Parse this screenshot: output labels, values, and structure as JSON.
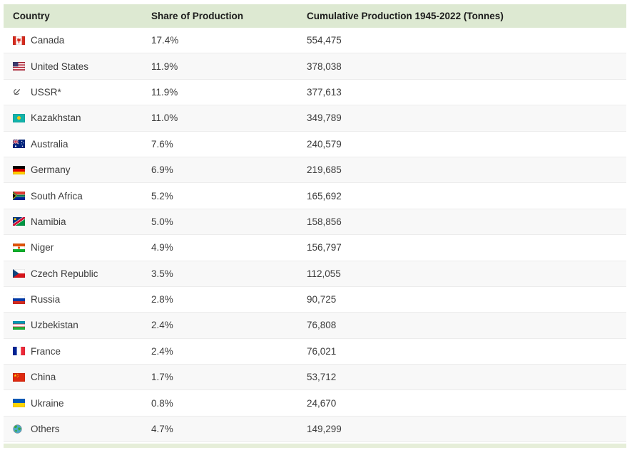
{
  "chart_data": {
    "type": "table",
    "columns": [
      "Country",
      "Share of Production",
      "Cumulative Production 1945-2022 (Tonnes)"
    ],
    "rows": [
      {
        "country": "Canada",
        "icon": "canada-flag-icon",
        "share": "17.4%",
        "share_pct": 17.4,
        "cumulative": "554,475",
        "cumulative_tonnes": 554475
      },
      {
        "country": "United States",
        "icon": "united-states-flag-icon",
        "share": "11.9%",
        "share_pct": 11.9,
        "cumulative": "378,038",
        "cumulative_tonnes": 378038
      },
      {
        "country": "USSR*",
        "icon": "ussr-hammer-sickle-icon",
        "share": "11.9%",
        "share_pct": 11.9,
        "cumulative": "377,613",
        "cumulative_tonnes": 377613
      },
      {
        "country": "Kazakhstan",
        "icon": "kazakhstan-flag-icon",
        "share": "11.0%",
        "share_pct": 11.0,
        "cumulative": "349,789",
        "cumulative_tonnes": 349789
      },
      {
        "country": "Australia",
        "icon": "australia-flag-icon",
        "share": "7.6%",
        "share_pct": 7.6,
        "cumulative": "240,579",
        "cumulative_tonnes": 240579
      },
      {
        "country": "Germany",
        "icon": "germany-flag-icon",
        "share": "6.9%",
        "share_pct": 6.9,
        "cumulative": "219,685",
        "cumulative_tonnes": 219685
      },
      {
        "country": "South Africa",
        "icon": "south-africa-flag-icon",
        "share": "5.2%",
        "share_pct": 5.2,
        "cumulative": "165,692",
        "cumulative_tonnes": 165692
      },
      {
        "country": "Namibia",
        "icon": "namibia-flag-icon",
        "share": "5.0%",
        "share_pct": 5.0,
        "cumulative": "158,856",
        "cumulative_tonnes": 158856
      },
      {
        "country": "Niger",
        "icon": "niger-flag-icon",
        "share": "4.9%",
        "share_pct": 4.9,
        "cumulative": "156,797",
        "cumulative_tonnes": 156797
      },
      {
        "country": "Czech Republic",
        "icon": "czech-republic-flag-icon",
        "share": "3.5%",
        "share_pct": 3.5,
        "cumulative": "112,055",
        "cumulative_tonnes": 112055
      },
      {
        "country": "Russia",
        "icon": "russia-flag-icon",
        "share": "2.8%",
        "share_pct": 2.8,
        "cumulative": "90,725",
        "cumulative_tonnes": 90725
      },
      {
        "country": "Uzbekistan",
        "icon": "uzbekistan-flag-icon",
        "share": "2.4%",
        "share_pct": 2.4,
        "cumulative": "76,808",
        "cumulative_tonnes": 76808
      },
      {
        "country": "France",
        "icon": "france-flag-icon",
        "share": "2.4%",
        "share_pct": 2.4,
        "cumulative": "76,021",
        "cumulative_tonnes": 76021
      },
      {
        "country": "China",
        "icon": "china-flag-icon",
        "share": "1.7%",
        "share_pct": 1.7,
        "cumulative": "53,712",
        "cumulative_tonnes": 53712
      },
      {
        "country": "Ukraine",
        "icon": "ukraine-flag-icon",
        "share": "0.8%",
        "share_pct": 0.8,
        "cumulative": "24,670",
        "cumulative_tonnes": 24670
      },
      {
        "country": "Others",
        "icon": "globe-icon",
        "share": "4.7%",
        "share_pct": 4.7,
        "cumulative": "149,299",
        "cumulative_tonnes": 149299
      }
    ],
    "layout_hints": {
      "striped_rows": true,
      "header_position": "top",
      "bottom_accent_bar": true
    }
  },
  "colors": {
    "header_bg": "#dde9d2",
    "header_text": "#1c1c1c",
    "text": "#3c3c3c",
    "alt_row_bg": "#f8f8f8",
    "divider": "#ececec",
    "bottom_strip": "#e6eed9"
  }
}
